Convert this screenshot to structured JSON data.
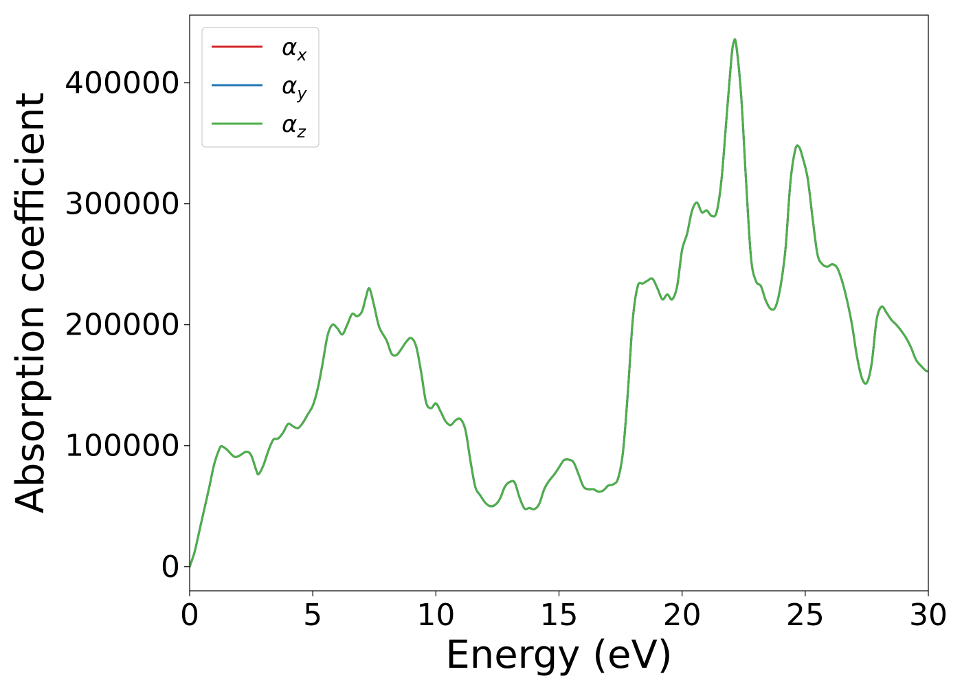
{
  "chart_data": {
    "type": "line",
    "xlabel": "Energy (eV)",
    "ylabel": "Absorption coefficient",
    "xlim": [
      0,
      30
    ],
    "ylim": [
      -20000,
      456000
    ],
    "xticks": [
      0,
      5,
      10,
      15,
      20,
      25,
      30
    ],
    "xtick_labels": [
      "0",
      "5",
      "10",
      "15",
      "20",
      "25",
      "30"
    ],
    "yticks": [
      0,
      100000,
      200000,
      300000,
      400000
    ],
    "ytick_labels": [
      "0",
      "100000",
      "200000",
      "300000",
      "400000"
    ],
    "grid": false,
    "legend": {
      "placement": "top-left",
      "entries": [
        {
          "base": "α",
          "sub": "x",
          "color": "#d62728"
        },
        {
          "base": "α",
          "sub": "y",
          "color": "#1f77b4"
        },
        {
          "base": "α",
          "sub": "z",
          "color": "#4daf4a"
        }
      ]
    },
    "x": [
      0.0,
      0.2,
      0.4,
      0.6,
      0.8,
      1.0,
      1.2,
      1.3,
      1.5,
      1.8,
      2.0,
      2.3,
      2.5,
      2.7,
      2.8,
      3.0,
      3.2,
      3.4,
      3.6,
      3.8,
      4.0,
      4.2,
      4.4,
      4.6,
      4.8,
      5.0,
      5.2,
      5.4,
      5.6,
      5.8,
      6.0,
      6.2,
      6.4,
      6.6,
      6.8,
      7.0,
      7.15,
      7.3,
      7.5,
      7.7,
      8.0,
      8.2,
      8.4,
      8.6,
      8.8,
      9.0,
      9.2,
      9.4,
      9.6,
      9.8,
      10.0,
      10.2,
      10.4,
      10.6,
      10.8,
      11.0,
      11.2,
      11.4,
      11.6,
      11.8,
      12.0,
      12.2,
      12.4,
      12.6,
      12.8,
      13.0,
      13.2,
      13.4,
      13.6,
      13.8,
      14.0,
      14.2,
      14.4,
      14.6,
      14.8,
      15.0,
      15.2,
      15.4,
      15.6,
      15.8,
      16.0,
      16.2,
      16.4,
      16.6,
      16.8,
      17.0,
      17.2,
      17.4,
      17.6,
      17.8,
      18.0,
      18.2,
      18.4,
      18.6,
      18.8,
      19.0,
      19.2,
      19.4,
      19.6,
      19.8,
      20.0,
      20.2,
      20.4,
      20.6,
      20.8,
      21.0,
      21.2,
      21.4,
      21.6,
      21.8,
      22.0,
      22.1,
      22.2,
      22.4,
      22.6,
      22.8,
      23.0,
      23.2,
      23.4,
      23.6,
      23.8,
      24.0,
      24.2,
      24.4,
      24.6,
      24.75,
      24.9,
      25.1,
      25.3,
      25.5,
      25.7,
      25.9,
      26.1,
      26.3,
      26.5,
      26.7,
      26.9,
      27.1,
      27.3,
      27.5,
      27.7,
      27.9,
      28.1,
      28.3,
      28.5,
      28.7,
      28.9,
      29.1,
      29.3,
      29.5,
      29.7,
      29.9,
      30.0
    ],
    "series": [
      {
        "color": "#d62728",
        "y": [
          0,
          12000,
          30000,
          48000,
          66000,
          85000,
          97000,
          99500,
          97000,
          91000,
          91500,
          95000,
          92000,
          80000,
          76500,
          84000,
          96000,
          105000,
          106000,
          111000,
          118000,
          116000,
          114500,
          119000,
          126000,
          133000,
          147000,
          168000,
          191000,
          200000,
          197000,
          192000,
          200000,
          209000,
          207000,
          211000,
          222000,
          230000,
          215000,
          198000,
          187000,
          176000,
          175000,
          180000,
          186000,
          189000,
          182000,
          161000,
          136000,
          131000,
          135000,
          128000,
          120000,
          117000,
          121000,
          122000,
          113000,
          88000,
          66000,
          59000,
          53000,
          50000,
          51000,
          56000,
          66000,
          70000,
          69500,
          57000,
          48000,
          48500,
          47500,
          52000,
          64000,
          71000,
          76000,
          82000,
          88000,
          88500,
          86000,
          76000,
          66000,
          64000,
          64000,
          62000,
          63000,
          67000,
          68000,
          73000,
          95000,
          145000,
          205000,
          232000,
          234000,
          236500,
          238000,
          230000,
          221000,
          225000,
          221000,
          232000,
          262000,
          275000,
          294000,
          301000,
          293000,
          294500,
          290000,
          293000,
          320000,
          370000,
          420000,
          434000,
          431000,
          389000,
          318000,
          255000,
          236000,
          232000,
          220000,
          213000,
          215000,
          232000,
          263000,
          318000,
          345000,
          347000,
          338000,
          321000,
          288000,
          258000,
          250000,
          248000,
          250000,
          247000,
          236000,
          220000,
          200000,
          174000,
          156000,
          152000,
          168000,
          204000,
          215000,
          210000,
          204000,
          200000,
          195000,
          189000,
          181000,
          171000,
          166000,
          162000,
          161500
        ]
      },
      {
        "color": "#1f77b4",
        "y": [
          0,
          12000,
          30000,
          48000,
          66000,
          85000,
          97000,
          99500,
          97000,
          91000,
          91500,
          95000,
          92000,
          80000,
          76500,
          84000,
          96000,
          105000,
          106000,
          111000,
          118000,
          116000,
          114500,
          119000,
          126000,
          133000,
          147000,
          168000,
          191000,
          200000,
          197000,
          192000,
          200000,
          209000,
          207000,
          211000,
          222000,
          230000,
          215000,
          198000,
          187000,
          176000,
          175000,
          180000,
          186000,
          189000,
          182000,
          161000,
          136000,
          131000,
          135000,
          128000,
          120000,
          117000,
          121000,
          122000,
          113000,
          88000,
          66000,
          59000,
          53000,
          50000,
          51000,
          56000,
          66000,
          70000,
          69500,
          57000,
          48000,
          48500,
          47500,
          52000,
          64000,
          71000,
          76000,
          82000,
          88000,
          88500,
          86000,
          76000,
          66000,
          64000,
          64000,
          62000,
          63000,
          67000,
          68000,
          73000,
          95000,
          145000,
          205000,
          232000,
          234000,
          236500,
          238000,
          230000,
          221000,
          225000,
          221000,
          232000,
          262000,
          275000,
          294000,
          301000,
          293000,
          294500,
          290000,
          293000,
          320000,
          370000,
          420000,
          434000,
          431000,
          389000,
          318000,
          255000,
          236000,
          232000,
          220000,
          213000,
          215000,
          232000,
          263000,
          318000,
          345000,
          347000,
          338000,
          321000,
          288000,
          258000,
          250000,
          248000,
          250000,
          247000,
          236000,
          220000,
          200000,
          174000,
          156000,
          152000,
          168000,
          204000,
          215000,
          210000,
          204000,
          200000,
          195000,
          189000,
          181000,
          171000,
          166000,
          162000,
          161500
        ]
      },
      {
        "color": "#4daf4a",
        "y": [
          0,
          12000,
          30000,
          48000,
          66000,
          85000,
          97000,
          99500,
          97000,
          91000,
          91500,
          95000,
          92000,
          80000,
          76500,
          84000,
          96000,
          105000,
          106000,
          111000,
          118000,
          116000,
          114500,
          119000,
          126000,
          133000,
          147000,
          168000,
          191000,
          200000,
          197000,
          192000,
          200000,
          209000,
          207000,
          211000,
          222000,
          230000,
          215000,
          198000,
          187000,
          176000,
          175000,
          180000,
          186000,
          189000,
          182000,
          161000,
          136000,
          131000,
          135000,
          128000,
          120000,
          117000,
          121000,
          122000,
          113000,
          88000,
          66000,
          59000,
          53000,
          50000,
          51000,
          56000,
          66000,
          70000,
          69500,
          57000,
          48000,
          48500,
          47500,
          52000,
          64000,
          71000,
          76000,
          82000,
          88000,
          88500,
          86000,
          76000,
          66000,
          64000,
          64000,
          62000,
          63000,
          67000,
          68000,
          73000,
          95000,
          145000,
          205000,
          232000,
          234000,
          236500,
          238000,
          230000,
          221000,
          225000,
          221000,
          232000,
          262000,
          275000,
          294000,
          301000,
          293000,
          294500,
          290000,
          293000,
          320000,
          370000,
          420000,
          434000,
          431000,
          389000,
          318000,
          255000,
          236000,
          232000,
          220000,
          213000,
          215000,
          232000,
          263000,
          318000,
          345000,
          347000,
          338000,
          321000,
          288000,
          258000,
          250000,
          248000,
          250000,
          247000,
          236000,
          220000,
          200000,
          174000,
          156000,
          152000,
          168000,
          204000,
          215000,
          210000,
          204000,
          200000,
          195000,
          189000,
          181000,
          171000,
          166000,
          162000,
          161500
        ]
      }
    ]
  }
}
